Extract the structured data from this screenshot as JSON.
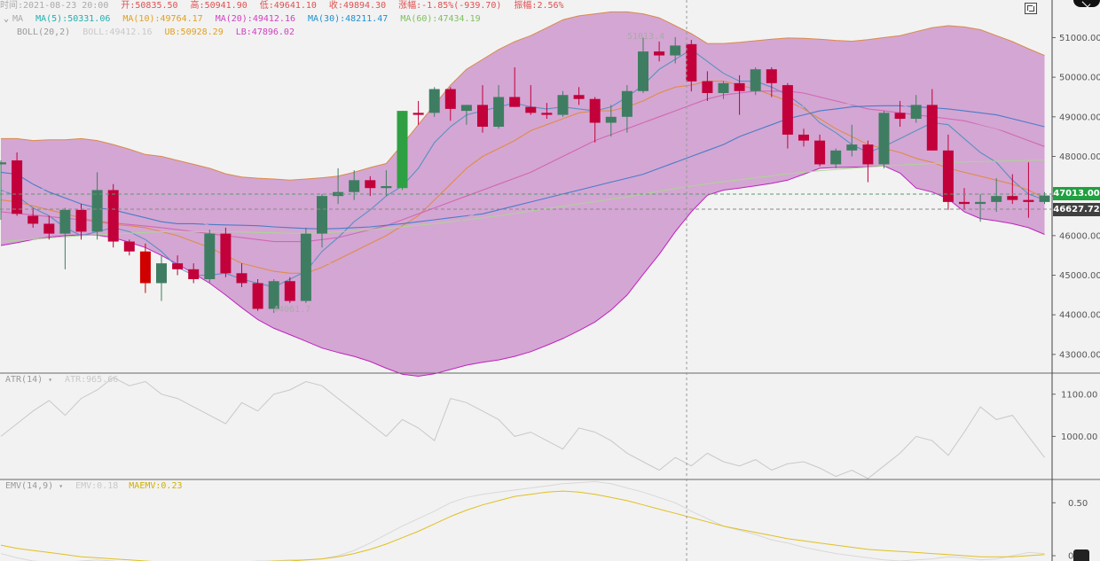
{
  "info_bar": {
    "time_label": "时间:2021-08-23 20:00",
    "open": "开:50835.50",
    "high": "高:50941.90",
    "low": "低:49641.10",
    "close": "收:49894.30",
    "change": "涨幅:-1.85%(-939.70)",
    "amplitude": "振幅:2.56%"
  },
  "ma_legend": {
    "toggle": "⌄",
    "name": "MA",
    "ma5": "MA(5):50331.06",
    "ma10": "MA(10):49764.17",
    "ma20": "MA(20):49412.16",
    "ma30": "MA(30):48211.47",
    "ma60": "MA(60):47434.19"
  },
  "boll_legend": {
    "name": "BOLL(20,2)",
    "boll": "BOLL:49412.16",
    "ub": "UB:50928.29",
    "lb": "LB:47896.02"
  },
  "atr_legend": {
    "name": "ATR(14)",
    "caret": "▾",
    "value": "ATR:965.66"
  },
  "emv_legend": {
    "name": "EMV(14,9)",
    "caret": "▾",
    "emv": "EMV:0.18",
    "maemv": "MAEMV:0.23"
  },
  "price_tags": {
    "last": "47013.00",
    "crosshair": "46627.72"
  },
  "annotations": {
    "high": "51013.4",
    "low": "44061.7"
  },
  "colors": {
    "up": "#3f7d62",
    "down": "#c2003a",
    "up_bright": "#2ea043",
    "down_bright": "#d00000",
    "band_fill": "#c98cc8",
    "band_edge": "#d98a4a",
    "band_lower_edge": "#c020c0",
    "ma5": "#4a90c0",
    "ma10": "#e08a3a",
    "ma20": "#d060b0",
    "ma30": "#3a78c8",
    "ma60": "#a8d890",
    "atr": "#c8c8c8",
    "emv": "#d8d8d8",
    "maemv": "#e0c020",
    "last_tag": "#20a040",
    "cross_tag": "#404040"
  },
  "chart_data": {
    "type": "candlestick",
    "interval": "4h",
    "price_axis": {
      "ticks": [
        51000,
        50000,
        49000,
        48000,
        47000,
        46000,
        45000,
        44000,
        43000
      ],
      "labels": [
        "51000.00",
        "50000.00",
        "49000.00",
        "48000.00",
        "47000.00",
        "46000.00",
        "45000.00",
        "44000.00",
        "43000.00"
      ],
      "range": [
        42550,
        51950
      ]
    },
    "candles": [
      {
        "o": 47800,
        "h": 47900,
        "l": 46400,
        "c": 47850
      },
      {
        "o": 47900,
        "h": 48100,
        "l": 46500,
        "c": 46550
      },
      {
        "o": 46500,
        "h": 46700,
        "l": 46200,
        "c": 46300
      },
      {
        "o": 46300,
        "h": 46500,
        "l": 45900,
        "c": 46050
      },
      {
        "o": 46050,
        "h": 46700,
        "l": 45150,
        "c": 46650
      },
      {
        "o": 46650,
        "h": 46800,
        "l": 45900,
        "c": 46100
      },
      {
        "o": 46100,
        "h": 47600,
        "l": 45900,
        "c": 47150
      },
      {
        "o": 47150,
        "h": 47300,
        "l": 45700,
        "c": 45850
      },
      {
        "o": 45850,
        "h": 45900,
        "l": 45500,
        "c": 45600
      },
      {
        "o": 45600,
        "h": 45800,
        "l": 44550,
        "c": 44800
      },
      {
        "o": 44800,
        "h": 45500,
        "l": 44350,
        "c": 45300
      },
      {
        "o": 45300,
        "h": 45500,
        "l": 45000,
        "c": 45150
      },
      {
        "o": 45150,
        "h": 45300,
        "l": 44800,
        "c": 44900
      },
      {
        "o": 44900,
        "h": 46150,
        "l": 44800,
        "c": 46050
      },
      {
        "o": 46050,
        "h": 46200,
        "l": 44950,
        "c": 45050
      },
      {
        "o": 45050,
        "h": 45300,
        "l": 44700,
        "c": 44800
      },
      {
        "o": 44800,
        "h": 44900,
        "l": 44100,
        "c": 44150
      },
      {
        "o": 44150,
        "h": 44900,
        "l": 44050,
        "c": 44850
      },
      {
        "o": 44850,
        "h": 44950,
        "l": 44300,
        "c": 44350
      },
      {
        "o": 44350,
        "h": 46200,
        "l": 44300,
        "c": 46050
      },
      {
        "o": 46050,
        "h": 47050,
        "l": 45700,
        "c": 47000
      },
      {
        "o": 47000,
        "h": 47700,
        "l": 46800,
        "c": 47100
      },
      {
        "o": 47100,
        "h": 47650,
        "l": 46900,
        "c": 47400
      },
      {
        "o": 47400,
        "h": 47500,
        "l": 47000,
        "c": 47200
      },
      {
        "o": 47200,
        "h": 47650,
        "l": 47000,
        "c": 47250
      },
      {
        "o": 47200,
        "h": 49150,
        "l": 47150,
        "c": 49150
      },
      {
        "o": 49100,
        "h": 49400,
        "l": 48800,
        "c": 49050
      },
      {
        "o": 49100,
        "h": 49750,
        "l": 49000,
        "c": 49700
      },
      {
        "o": 49700,
        "h": 49750,
        "l": 48900,
        "c": 49200
      },
      {
        "o": 49150,
        "h": 49300,
        "l": 48800,
        "c": 49300
      },
      {
        "o": 49300,
        "h": 49800,
        "l": 48600,
        "c": 48750
      },
      {
        "o": 48750,
        "h": 49800,
        "l": 48700,
        "c": 49500
      },
      {
        "o": 49500,
        "h": 50250,
        "l": 49250,
        "c": 49250
      },
      {
        "o": 49250,
        "h": 49800,
        "l": 49050,
        "c": 49100
      },
      {
        "o": 49100,
        "h": 49350,
        "l": 48950,
        "c": 49050
      },
      {
        "o": 49050,
        "h": 49650,
        "l": 49000,
        "c": 49550
      },
      {
        "o": 49550,
        "h": 49750,
        "l": 49300,
        "c": 49450
      },
      {
        "o": 49450,
        "h": 49500,
        "l": 48350,
        "c": 48850
      },
      {
        "o": 48850,
        "h": 49300,
        "l": 48500,
        "c": 49000
      },
      {
        "o": 49000,
        "h": 49800,
        "l": 48600,
        "c": 49650
      },
      {
        "o": 49650,
        "h": 51000,
        "l": 49600,
        "c": 50650
      },
      {
        "o": 50650,
        "h": 50900,
        "l": 50400,
        "c": 50550
      },
      {
        "o": 50550,
        "h": 51013,
        "l": 50350,
        "c": 50800
      },
      {
        "o": 50835,
        "h": 50942,
        "l": 49641,
        "c": 49894
      },
      {
        "o": 49900,
        "h": 50150,
        "l": 49400,
        "c": 49600
      },
      {
        "o": 49600,
        "h": 49900,
        "l": 49450,
        "c": 49850
      },
      {
        "o": 49850,
        "h": 50050,
        "l": 49050,
        "c": 49650
      },
      {
        "o": 49650,
        "h": 50250,
        "l": 49550,
        "c": 50200
      },
      {
        "o": 50200,
        "h": 50250,
        "l": 49500,
        "c": 49850
      },
      {
        "o": 49800,
        "h": 49850,
        "l": 48200,
        "c": 48550
      },
      {
        "o": 48550,
        "h": 48700,
        "l": 48250,
        "c": 48400
      },
      {
        "o": 48400,
        "h": 48550,
        "l": 47750,
        "c": 47800
      },
      {
        "o": 47800,
        "h": 48200,
        "l": 47700,
        "c": 48150
      },
      {
        "o": 48150,
        "h": 48800,
        "l": 48000,
        "c": 48300
      },
      {
        "o": 48300,
        "h": 48400,
        "l": 47350,
        "c": 47800
      },
      {
        "o": 47800,
        "h": 49150,
        "l": 47700,
        "c": 49100
      },
      {
        "o": 49100,
        "h": 49400,
        "l": 48750,
        "c": 48950
      },
      {
        "o": 48950,
        "h": 49550,
        "l": 48850,
        "c": 49300
      },
      {
        "o": 49300,
        "h": 49700,
        "l": 48150,
        "c": 48150
      },
      {
        "o": 48150,
        "h": 48550,
        "l": 46650,
        "c": 46850
      },
      {
        "o": 46850,
        "h": 47200,
        "l": 46650,
        "c": 46800
      },
      {
        "o": 46800,
        "h": 47050,
        "l": 46350,
        "c": 46850
      },
      {
        "o": 46850,
        "h": 47450,
        "l": 46600,
        "c": 47000
      },
      {
        "o": 47000,
        "h": 47550,
        "l": 46800,
        "c": 46900
      },
      {
        "o": 46900,
        "h": 47850,
        "l": 46450,
        "c": 46850
      },
      {
        "o": 46850,
        "h": 47100,
        "l": 46800,
        "c": 47013
      }
    ],
    "boll_ub": [
      48450,
      48450,
      48400,
      48420,
      48420,
      48450,
      48400,
      48300,
      48180,
      48050,
      48000,
      47900,
      47800,
      47700,
      47560,
      47480,
      47450,
      47430,
      47400,
      47430,
      47460,
      47500,
      47600,
      47720,
      47820,
      48300,
      48800,
      49300,
      49800,
      50200,
      50450,
      50700,
      50900,
      51050,
      51250,
      51450,
      51550,
      51600,
      51650,
      51650,
      51600,
      51500,
      51300,
      51100,
      50850,
      50850,
      50880,
      50920,
      50960,
      50990,
      50980,
      50960,
      50930,
      50910,
      50950,
      51000,
      51050,
      51150,
      51250,
      51300,
      51270,
      51200,
      51050,
      50900,
      50720,
      50550
    ],
    "boll_lb": [
      45750,
      45820,
      45900,
      45960,
      46000,
      46020,
      46010,
      45950,
      45830,
      45700,
      45500,
      45280,
      45040,
      44800,
      44500,
      44180,
      43880,
      43660,
      43500,
      43330,
      43160,
      43050,
      42950,
      42820,
      42650,
      42500,
      42450,
      42510,
      42620,
      42730,
      42800,
      42860,
      42950,
      43070,
      43230,
      43400,
      43600,
      43820,
      44120,
      44500,
      45020,
      45530,
      46100,
      46600,
      47020,
      47150,
      47200,
      47260,
      47320,
      47400,
      47550,
      47700,
      47720,
      47730,
      47740,
      47760,
      47580,
      47200,
      47100,
      46930,
      46600,
      46430,
      46370,
      46300,
      46200,
      46030
    ],
    "ma_series_order": [
      "ma5",
      "ma10",
      "ma20",
      "ma30",
      "ma60",
      "boll_mid"
    ],
    "ma5": [
      47150,
      47000,
      46700,
      46500,
      46200,
      46000,
      46100,
      46200,
      46100,
      45900,
      45600,
      45200,
      45000,
      45000,
      45050,
      44900,
      44800,
      44700,
      44900,
      45100,
      45600,
      45950,
      46350,
      46650,
      47000,
      47250,
      47700,
      48350,
      48750,
      49050,
      49150,
      49250,
      49350,
      49250,
      49200,
      49250,
      49200,
      49150,
      49250,
      49500,
      49800,
      50200,
      50450,
      50700,
      50400,
      50100,
      49900,
      49900,
      49750,
      49550,
      49250,
      48850,
      48600,
      48300,
      48100,
      48250,
      48450,
      48650,
      48850,
      48800,
      48450,
      48100,
      47850,
      47400,
      47050,
      46900
    ],
    "ma10": [
      46900,
      46850,
      46750,
      46650,
      46550,
      46450,
      46350,
      46280,
      46250,
      46200,
      46100,
      46000,
      45850,
      45700,
      45500,
      45300,
      45200,
      45100,
      45050,
      45050,
      45200,
      45400,
      45600,
      45800,
      46000,
      46250,
      46500,
      46900,
      47300,
      47700,
      48000,
      48200,
      48400,
      48650,
      48800,
      48950,
      49100,
      49150,
      49150,
      49250,
      49400,
      49600,
      49750,
      49800,
      49900,
      49900,
      49800,
      49700,
      49550,
      49400,
      49200,
      48950,
      48700,
      48500,
      48300,
      48200,
      48100,
      47950,
      47850,
      47700,
      47600,
      47500,
      47400,
      47300,
      47150,
      46950
    ],
    "ma20": [
      46600,
      46560,
      46520,
      46480,
      46440,
      46400,
      46360,
      46320,
      46280,
      46240,
      46200,
      46150,
      46100,
      46050,
      46000,
      45950,
      45900,
      45850,
      45850,
      45850,
      45900,
      45950,
      46050,
      46150,
      46250,
      46400,
      46550,
      46700,
      46850,
      47000,
      47150,
      47300,
      47450,
      47600,
      47800,
      48000,
      48200,
      48400,
      48550,
      48700,
      48850,
      49000,
      49150,
      49300,
      49450,
      49550,
      49600,
      49650,
      49650,
      49650,
      49600,
      49500,
      49400,
      49300,
      49200,
      49150,
      49100,
      49050,
      49000,
      48950,
      48900,
      48800,
      48700,
      48550,
      48400,
      48250
    ],
    "ma30": [
      47600,
      47550,
      47300,
      47100,
      46950,
      46800,
      46700,
      46650,
      46550,
      46450,
      46350,
      46300,
      46300,
      46280,
      46270,
      46260,
      46250,
      46220,
      46200,
      46180,
      46170,
      46180,
      46200,
      46220,
      46260,
      46300,
      46350,
      46400,
      46450,
      46500,
      46550,
      46650,
      46750,
      46850,
      46950,
      47050,
      47150,
      47250,
      47350,
      47450,
      47550,
      47700,
      47850,
      48000,
      48150,
      48300,
      48500,
      48650,
      48800,
      48950,
      49050,
      49150,
      49200,
      49250,
      49270,
      49280,
      49280,
      49250,
      49230,
      49200,
      49150,
      49100,
      49050,
      48950,
      48850,
      48750
    ],
    "ma60": [
      45850,
      45880,
      45910,
      45940,
      45970,
      46000,
      46020,
      46040,
      46060,
      46080,
      46100,
      46100,
      46100,
      46100,
      46100,
      46090,
      46080,
      46070,
      46060,
      46060,
      46070,
      46090,
      46120,
      46150,
      46180,
      46220,
      46260,
      46300,
      46350,
      46400,
      46450,
      46500,
      46560,
      46620,
      46680,
      46740,
      46800,
      46860,
      46920,
      46980,
      47050,
      47120,
      47190,
      47250,
      47310,
      47360,
      47410,
      47460,
      47510,
      47560,
      47600,
      47640,
      47670,
      47700,
      47730,
      47760,
      47780,
      47800,
      47820,
      47840,
      47860,
      47870,
      47880,
      47890,
      47900,
      47910
    ],
    "boll_mid": [
      47100,
      47140,
      47150,
      47190,
      47210,
      47235,
      47205,
      47125,
      47005,
      46875,
      46750,
      46590,
      46420,
      46250,
      46030,
      45830,
      45665,
      45545,
      45450,
      45380,
      45310,
      45275,
      45275,
      45270,
      45235,
      45400,
      45625,
      45905,
      46210,
      46465,
      46625,
      46780,
      46925,
      47060,
      47240,
      47425,
      47575,
      47710,
      47885,
      48075,
      48310,
      48515,
      48700,
      48850,
      48935,
      49000,
      49040,
      49090,
      49140,
      49195,
      49265,
      49330,
      49325,
      49320,
      49345,
      49380,
      49315,
      49175,
      49175,
      49115,
      48935,
      48815,
      48710,
      48600,
      48460,
      48290
    ],
    "atr": {
      "ticks": [
        1100,
        1000
      ],
      "labels": [
        "1100.00",
        "1000.00"
      ],
      "range": [
        900,
        1150
      ],
      "values": [
        1000,
        1030,
        1060,
        1085,
        1050,
        1090,
        1110,
        1140,
        1120,
        1130,
        1100,
        1090,
        1070,
        1050,
        1030,
        1080,
        1060,
        1100,
        1110,
        1130,
        1120,
        1090,
        1060,
        1030,
        1000,
        1040,
        1020,
        990,
        1090,
        1080,
        1060,
        1040,
        1000,
        1010,
        990,
        970,
        1020,
        1010,
        990,
        960,
        940,
        920,
        950,
        930,
        960,
        940,
        930,
        945,
        920,
        935,
        940,
        925,
        905,
        920,
        900,
        930,
        960,
        1000,
        990,
        955,
        1010,
        1070,
        1040,
        1050,
        1000,
        950
      ]
    },
    "emv": {
      "ticks": [
        0.5,
        0.0
      ],
      "labels": [
        "0.50",
        "0.00"
      ],
      "range": [
        -0.05,
        0.72
      ],
      "emv_values": [
        0.02,
        -0.02,
        -0.05,
        -0.06,
        -0.06,
        -0.05,
        -0.04,
        -0.05,
        -0.07,
        -0.08,
        -0.08,
        -0.08,
        -0.07,
        -0.07,
        -0.06,
        -0.06,
        -0.05,
        -0.05,
        -0.04,
        -0.04,
        -0.03,
        0.0,
        0.05,
        0.12,
        0.2,
        0.28,
        0.35,
        0.42,
        0.5,
        0.55,
        0.58,
        0.6,
        0.62,
        0.64,
        0.66,
        0.68,
        0.69,
        0.7,
        0.68,
        0.64,
        0.6,
        0.55,
        0.5,
        0.42,
        0.35,
        0.28,
        0.24,
        0.2,
        0.15,
        0.12,
        0.08,
        0.05,
        0.02,
        0.0,
        -0.02,
        -0.04,
        -0.05,
        -0.04,
        -0.03,
        -0.01,
        -0.02,
        -0.04,
        -0.03,
        0.0,
        0.03,
        0.02
      ],
      "maemv_values": [
        0.1,
        0.07,
        0.05,
        0.03,
        0.01,
        -0.01,
        -0.02,
        -0.03,
        -0.04,
        -0.05,
        -0.06,
        -0.06,
        -0.06,
        -0.06,
        -0.06,
        -0.06,
        -0.06,
        -0.05,
        -0.05,
        -0.04,
        -0.03,
        -0.01,
        0.02,
        0.06,
        0.11,
        0.17,
        0.23,
        0.3,
        0.37,
        0.43,
        0.48,
        0.52,
        0.56,
        0.58,
        0.6,
        0.61,
        0.6,
        0.58,
        0.55,
        0.52,
        0.48,
        0.44,
        0.4,
        0.36,
        0.32,
        0.28,
        0.25,
        0.22,
        0.19,
        0.16,
        0.14,
        0.12,
        0.1,
        0.08,
        0.06,
        0.05,
        0.04,
        0.03,
        0.02,
        0.01,
        0.0,
        -0.01,
        -0.01,
        -0.01,
        0.0,
        0.01
      ]
    }
  }
}
